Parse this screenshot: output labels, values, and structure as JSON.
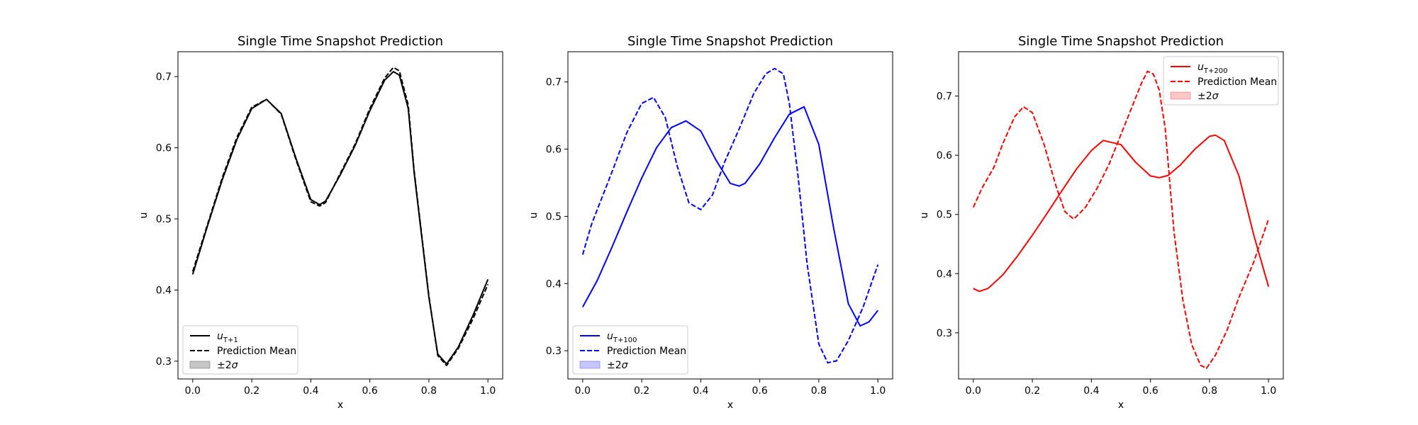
{
  "chart_data": [
    {
      "type": "line",
      "title": "Single Time Snapshot Prediction",
      "xlabel": "x",
      "ylabel": "u",
      "xlim": [
        -0.05,
        1.05
      ],
      "ylim": [
        0.275,
        0.735
      ],
      "xticks": [
        "0.0",
        "0.2",
        "0.4",
        "0.6",
        "0.8",
        "1.0"
      ],
      "yticks": [
        "0.3",
        "0.4",
        "0.5",
        "0.6",
        "0.7"
      ],
      "color": "#000000",
      "legend_position": "lower-left",
      "legend": {
        "truth": "u_{T+1}",
        "mean": "Prediction Mean",
        "band": "±2σ"
      },
      "series": [
        {
          "name": "u_{T+1}",
          "style": "solid",
          "x": [
            0.0,
            0.05,
            0.1,
            0.15,
            0.2,
            0.25,
            0.3,
            0.35,
            0.4,
            0.43,
            0.45,
            0.5,
            0.55,
            0.6,
            0.65,
            0.68,
            0.7,
            0.73,
            0.75,
            0.8,
            0.83,
            0.86,
            0.9,
            0.95,
            1.0
          ],
          "y": [
            0.422,
            0.49,
            0.555,
            0.612,
            0.655,
            0.668,
            0.648,
            0.585,
            0.527,
            0.52,
            0.525,
            0.562,
            0.603,
            0.652,
            0.695,
            0.707,
            0.702,
            0.655,
            0.565,
            0.39,
            0.31,
            0.296,
            0.32,
            0.365,
            0.415
          ]
        },
        {
          "name": "Prediction Mean",
          "style": "dashed",
          "x": [
            0.0,
            0.05,
            0.1,
            0.15,
            0.2,
            0.25,
            0.3,
            0.35,
            0.4,
            0.43,
            0.45,
            0.5,
            0.55,
            0.6,
            0.65,
            0.68,
            0.7,
            0.73,
            0.75,
            0.8,
            0.83,
            0.86,
            0.9,
            0.95,
            1.0
          ],
          "y": [
            0.426,
            0.492,
            0.558,
            0.615,
            0.657,
            0.668,
            0.647,
            0.583,
            0.524,
            0.518,
            0.523,
            0.564,
            0.605,
            0.655,
            0.698,
            0.713,
            0.708,
            0.66,
            0.568,
            0.392,
            0.308,
            0.294,
            0.318,
            0.36,
            0.408
          ]
        }
      ]
    },
    {
      "type": "line",
      "title": "Single Time Snapshot Prediction",
      "xlabel": "x",
      "ylabel": "u",
      "xlim": [
        -0.05,
        1.05
      ],
      "ylim": [
        0.258,
        0.745
      ],
      "xticks": [
        "0.0",
        "0.2",
        "0.4",
        "0.6",
        "0.8",
        "1.0"
      ],
      "yticks": [
        "0.3",
        "0.4",
        "0.5",
        "0.6",
        "0.7"
      ],
      "color": "#0000ff",
      "legend_position": "lower-left",
      "legend": {
        "truth": "u_{T+100}",
        "mean": "Prediction Mean",
        "band": "±2σ"
      },
      "series": [
        {
          "name": "u_{T+100}",
          "style": "solid",
          "x": [
            0.0,
            0.05,
            0.1,
            0.15,
            0.2,
            0.25,
            0.3,
            0.35,
            0.4,
            0.45,
            0.5,
            0.53,
            0.55,
            0.6,
            0.65,
            0.7,
            0.75,
            0.8,
            0.85,
            0.9,
            0.94,
            0.97,
            1.0
          ],
          "y": [
            0.365,
            0.405,
            0.455,
            0.507,
            0.557,
            0.602,
            0.632,
            0.642,
            0.627,
            0.585,
            0.549,
            0.545,
            0.549,
            0.578,
            0.617,
            0.652,
            0.663,
            0.607,
            0.483,
            0.37,
            0.337,
            0.343,
            0.36
          ]
        },
        {
          "name": "Prediction Mean",
          "style": "dashed",
          "x": [
            0.0,
            0.03,
            0.06,
            0.1,
            0.15,
            0.2,
            0.24,
            0.28,
            0.32,
            0.36,
            0.4,
            0.44,
            0.48,
            0.53,
            0.58,
            0.62,
            0.65,
            0.68,
            0.7,
            0.73,
            0.76,
            0.8,
            0.83,
            0.86,
            0.9,
            0.95,
            1.0
          ],
          "y": [
            0.443,
            0.488,
            0.522,
            0.567,
            0.625,
            0.668,
            0.677,
            0.647,
            0.575,
            0.52,
            0.51,
            0.532,
            0.58,
            0.63,
            0.683,
            0.712,
            0.72,
            0.712,
            0.668,
            0.558,
            0.43,
            0.31,
            0.282,
            0.285,
            0.315,
            0.365,
            0.428
          ]
        }
      ]
    },
    {
      "type": "line",
      "title": "Single Time Snapshot Prediction",
      "xlabel": "x",
      "ylabel": "u",
      "xlim": [
        -0.05,
        1.05
      ],
      "ylim": [
        0.222,
        0.775
      ],
      "xticks": [
        "0.0",
        "0.2",
        "0.4",
        "0.6",
        "0.8",
        "1.0"
      ],
      "yticks": [
        "0.3",
        "0.4",
        "0.5",
        "0.6",
        "0.7"
      ],
      "color": "#ff0000",
      "legend_position": "upper-right",
      "legend": {
        "truth": "u_{T+200}",
        "mean": "Prediction Mean",
        "band": "±2σ"
      },
      "series": [
        {
          "name": "u_{T+200}",
          "style": "solid",
          "x": [
            0.0,
            0.02,
            0.05,
            0.1,
            0.15,
            0.2,
            0.25,
            0.3,
            0.35,
            0.4,
            0.44,
            0.5,
            0.55,
            0.6,
            0.63,
            0.66,
            0.7,
            0.75,
            0.8,
            0.82,
            0.85,
            0.9,
            0.95,
            1.0
          ],
          "y": [
            0.375,
            0.37,
            0.375,
            0.398,
            0.43,
            0.465,
            0.502,
            0.54,
            0.577,
            0.608,
            0.625,
            0.618,
            0.588,
            0.565,
            0.562,
            0.566,
            0.583,
            0.61,
            0.632,
            0.634,
            0.625,
            0.565,
            0.465,
            0.378
          ]
        },
        {
          "name": "Prediction Mean",
          "style": "dashed",
          "x": [
            0.0,
            0.03,
            0.07,
            0.1,
            0.14,
            0.17,
            0.2,
            0.24,
            0.28,
            0.31,
            0.34,
            0.38,
            0.42,
            0.46,
            0.5,
            0.54,
            0.57,
            0.59,
            0.61,
            0.63,
            0.65,
            0.68,
            0.71,
            0.74,
            0.77,
            0.79,
            0.82,
            0.86,
            0.9,
            0.95,
            1.0
          ],
          "y": [
            0.512,
            0.545,
            0.58,
            0.62,
            0.665,
            0.682,
            0.672,
            0.618,
            0.548,
            0.505,
            0.492,
            0.512,
            0.545,
            0.585,
            0.635,
            0.685,
            0.722,
            0.742,
            0.737,
            0.71,
            0.645,
            0.47,
            0.355,
            0.28,
            0.245,
            0.24,
            0.262,
            0.305,
            0.36,
            0.42,
            0.492
          ]
        }
      ]
    }
  ]
}
